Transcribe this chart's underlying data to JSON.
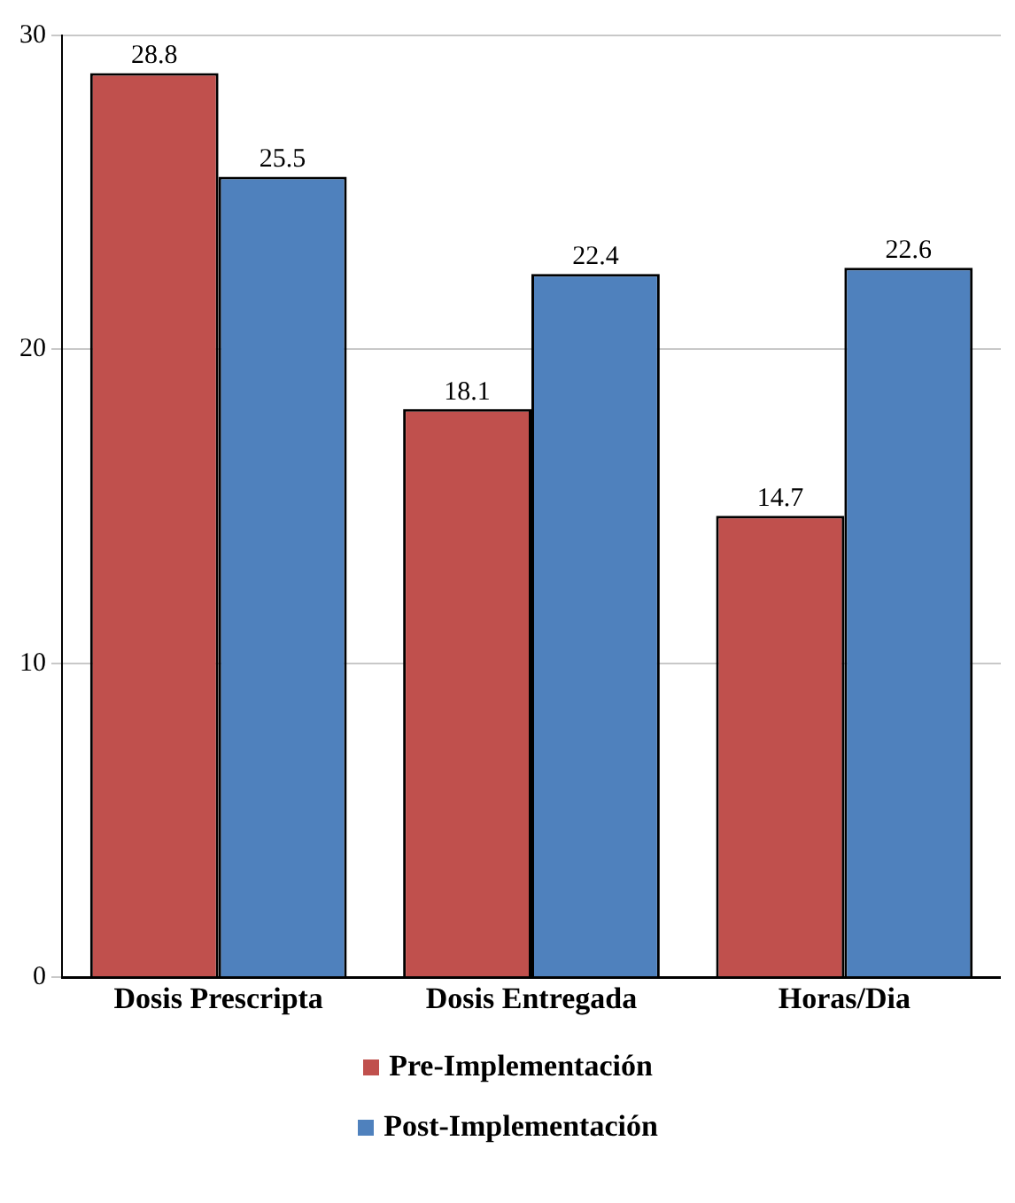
{
  "chart_data": {
    "type": "bar",
    "categories": [
      "Dosis Prescripta",
      "Dosis Entregada",
      "Horas/Dia"
    ],
    "series": [
      {
        "name": "Pre-Implementación",
        "color": "#c0504d",
        "values": [
          28.8,
          18.1,
          14.7
        ]
      },
      {
        "name": "Post-Implementación",
        "color": "#4f81bd",
        "values": [
          25.5,
          22.4,
          22.6
        ]
      }
    ],
    "ylim": [
      0,
      30
    ],
    "yticks": [
      0,
      10,
      20,
      30
    ],
    "grid": "y",
    "legend": "bottom",
    "data_labels": true
  }
}
